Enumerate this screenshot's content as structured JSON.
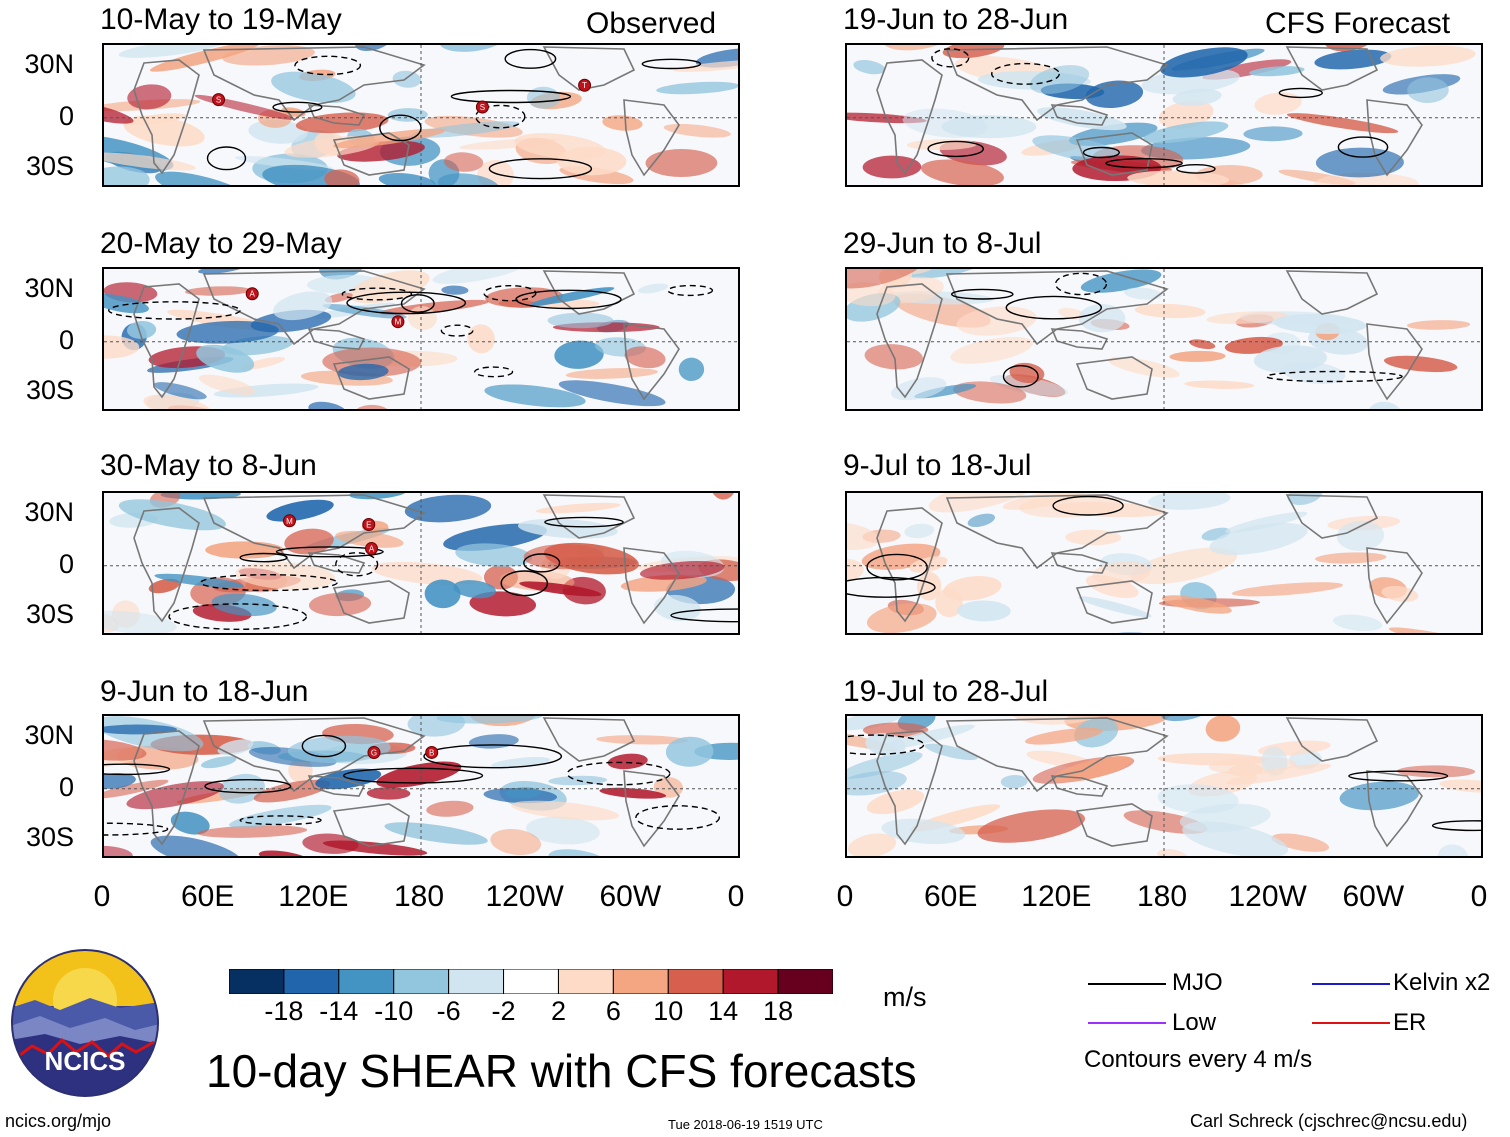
{
  "observed_label": "Observed",
  "forecast_label": "CFS Forecast",
  "observed_panels": [
    {
      "title": "10-May to 19-May",
      "storms": [
        "S",
        "S",
        "T"
      ]
    },
    {
      "title": "20-May to 29-May",
      "storms": [
        "M",
        "A"
      ]
    },
    {
      "title": "30-May to 8-Jun",
      "storms": [
        "E",
        "M",
        "A"
      ]
    },
    {
      "title": "9-Jun to 18-Jun",
      "storms": [
        "G",
        "B"
      ]
    }
  ],
  "forecast_panels": [
    {
      "title": "19-Jun to 28-Jun"
    },
    {
      "title": "29-Jun to 8-Jul"
    },
    {
      "title": "9-Jul to 18-Jul"
    },
    {
      "title": "19-Jul to 28-Jul"
    }
  ],
  "lat_ticks": [
    "30N",
    "0",
    "30S"
  ],
  "lon_ticks": [
    "0",
    "60E",
    "120E",
    "180",
    "120W",
    "60W",
    "0"
  ],
  "colorbar": {
    "unit": "m/s",
    "labels": [
      "-18",
      "-14",
      "-10",
      "-6",
      "-2",
      "2",
      "6",
      "10",
      "14",
      "18"
    ],
    "colors": [
      "#053061",
      "#2166ac",
      "#4393c3",
      "#92c5de",
      "#d1e5f0",
      "#ffffff",
      "#fddbc7",
      "#f4a582",
      "#d6604d",
      "#b2182b",
      "#67001f"
    ]
  },
  "legend": {
    "items": [
      {
        "label": "MJO",
        "color": "#000000"
      },
      {
        "label": "Kelvin x2",
        "color": "#1a1acc"
      },
      {
        "label": "Low",
        "color": "#9b30ff"
      },
      {
        "label": "ER",
        "color": "#dd1111"
      }
    ],
    "note": "Contours every 4 m/s"
  },
  "logo_text": "NCICS",
  "main_title": "10-day SHEAR with CFS forecasts",
  "footer": {
    "left": "ncics.org/mjo",
    "center": "Tue 2018-06-19 1519 UTC",
    "right": "Carl Schreck (cjschrec@ncsu.edu)"
  }
}
